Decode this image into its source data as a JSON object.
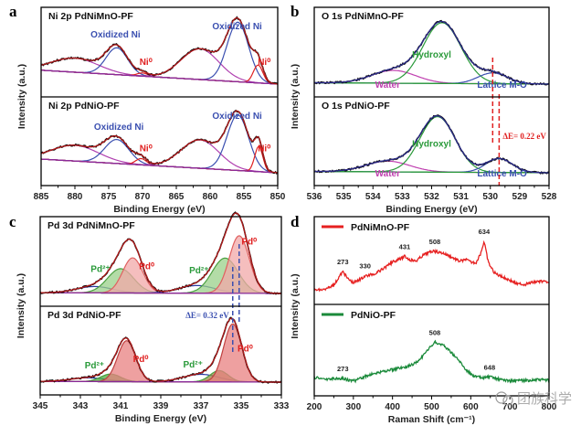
{
  "chart_data": [
    {
      "panel": "a",
      "type": "line",
      "xlabel": "Binding Energy (eV)",
      "ylabel": "Intensity (a.u.)",
      "xlim": [
        885,
        850
      ],
      "xticks": [
        885,
        880,
        875,
        870,
        865,
        860,
        855,
        850
      ],
      "subplots": [
        {
          "title": "Ni 2p PdNiMnO-PF",
          "annotations": [
            {
              "text": "Oxidized Ni",
              "x": 874,
              "color": "#3a4fb0"
            },
            {
              "text": "Ni⁰",
              "x": 869.5,
              "color": "#e02020"
            },
            {
              "text": "Oxidized Ni",
              "x": 856,
              "color": "#3a4fb0"
            },
            {
              "text": "Ni⁰",
              "x": 852,
              "color": "#e02020"
            }
          ],
          "peaks": [
            {
              "name": "Satellite",
              "center": 880,
              "height": 0.22,
              "width": 3.5,
              "color": "#b040b0"
            },
            {
              "name": "Oxidized Ni",
              "center": 873.8,
              "height": 0.42,
              "width": 1.6,
              "color": "#3a4fb0"
            },
            {
              "name": "Ni⁰",
              "center": 870.0,
              "height": 0.05,
              "width": 0.8,
              "color": "#e02020"
            },
            {
              "name": "Satellite",
              "center": 861.5,
              "height": 0.48,
              "width": 2.8,
              "color": "#b040b0"
            },
            {
              "name": "Oxidized Ni",
              "center": 855.9,
              "height": 0.93,
              "width": 1.6,
              "color": "#3a4fb0"
            },
            {
              "name": "Ni⁰",
              "center": 852.9,
              "height": 0.28,
              "width": 0.7,
              "color": "#e02020"
            }
          ],
          "baseline": [
            0.62,
            0.0
          ]
        },
        {
          "title": "Ni 2p PdNiO-PF",
          "annotations": [
            {
              "text": "Oxidized Ni",
              "x": 873.5,
              "color": "#3a4fb0"
            },
            {
              "text": "Ni⁰",
              "x": 869.5,
              "color": "#e02020"
            },
            {
              "text": "Oxidized Ni",
              "x": 856,
              "color": "#3a4fb0"
            },
            {
              "text": "Ni⁰",
              "x": 852,
              "color": "#e02020"
            }
          ],
          "peaks": [
            {
              "name": "Satellite",
              "center": 880,
              "height": 0.25,
              "width": 3.5,
              "color": "#b040b0"
            },
            {
              "name": "Oxidized Ni",
              "center": 873.8,
              "height": 0.38,
              "width": 1.8,
              "color": "#3a4fb0"
            },
            {
              "name": "Ni⁰",
              "center": 870.2,
              "height": 0.1,
              "width": 0.8,
              "color": "#e02020"
            },
            {
              "name": "Satellite",
              "center": 861.5,
              "height": 0.45,
              "width": 2.8,
              "color": "#b040b0"
            },
            {
              "name": "Oxidized Ni",
              "center": 855.9,
              "height": 0.88,
              "width": 1.6,
              "color": "#3a4fb0"
            },
            {
              "name": "Ni⁰",
              "center": 852.8,
              "height": 0.4,
              "width": 0.6,
              "color": "#e02020"
            }
          ],
          "baseline": [
            0.62,
            0.0
          ]
        }
      ]
    },
    {
      "panel": "b",
      "type": "line",
      "xlabel": "Binding Energy (eV)",
      "ylabel": "Intensity (a.u.)",
      "xlim": [
        536,
        528
      ],
      "xticks": [
        536,
        535,
        534,
        533,
        532,
        531,
        530,
        529,
        528
      ],
      "delta_annotation": "ΔE= 0.22 eV",
      "dashed_lines": [
        529.92,
        529.7
      ],
      "subplots": [
        {
          "title": "O 1s PdNiMnO-PF",
          "annotations": [
            {
              "text": "Hydroxyl",
              "x": 532.0,
              "color": "#2a9a3a"
            },
            {
              "text": "Water",
              "x": 533.5,
              "color": "#c040b0"
            },
            {
              "text": "Lattice M-O",
              "x": 529.6,
              "color": "#3a4fb0"
            }
          ],
          "peaks": [
            {
              "name": "Water",
              "center": 533.3,
              "height": 0.2,
              "width": 0.75,
              "color": "#c040b0"
            },
            {
              "name": "Hydroxyl",
              "center": 531.65,
              "height": 0.95,
              "width": 0.65,
              "color": "#2a9a3a"
            },
            {
              "name": "Lattice M-O",
              "center": 529.92,
              "height": 0.17,
              "width": 0.5,
              "color": "#3a4fb0"
            }
          ],
          "baseline": [
            0.06,
            0.0
          ]
        },
        {
          "title": "O 1s PdNiO-PF",
          "annotations": [
            {
              "text": "Hydroxyl",
              "x": 532.0,
              "color": "#2a9a3a"
            },
            {
              "text": "Water",
              "x": 533.5,
              "color": "#c040b0"
            },
            {
              "text": "Lattice M-O",
              "x": 529.6,
              "color": "#3a4fb0"
            }
          ],
          "peaks": [
            {
              "name": "Water",
              "center": 533.5,
              "height": 0.17,
              "width": 0.75,
              "color": "#c040b0"
            },
            {
              "name": "Hydroxyl",
              "center": 531.8,
              "height": 0.88,
              "width": 0.6,
              "color": "#2a9a3a"
            },
            {
              "name": "Lattice M-O",
              "center": 529.7,
              "height": 0.22,
              "width": 0.45,
              "color": "#3a4fb0"
            }
          ],
          "baseline": [
            0.06,
            0.0
          ]
        }
      ]
    },
    {
      "panel": "c",
      "type": "line",
      "xlabel": "Binding Energy (eV)",
      "ylabel": "Intensity (a.u.)",
      "xlim": [
        345,
        333
      ],
      "xticks": [
        345,
        343,
        341,
        339,
        337,
        335,
        333
      ],
      "delta_annotation": "ΔE= 0.32 eV",
      "dashed_lines": [
        335.1,
        335.42
      ],
      "subplots": [
        {
          "title": "Pd 3d PdNiMnO-PF",
          "annotations": [
            {
              "text": "Pd²⁺",
              "x": 342.0,
              "color": "#2a9a3a"
            },
            {
              "text": "Pd⁰",
              "x": 339.7,
              "color": "#e02020"
            },
            {
              "text": "Pd²⁺",
              "x": 337.1,
              "color": "#2a9a3a"
            },
            {
              "text": "Pd⁰",
              "x": 334.6,
              "color": "#e02020"
            }
          ],
          "peaks": [
            {
              "name": "Pd²⁺ sat",
              "center": 342.3,
              "height": 0.1,
              "width": 0.9,
              "color": "#2a3aa0"
            },
            {
              "name": "Pd²⁺",
              "center": 341.0,
              "height": 0.38,
              "width": 0.65,
              "color": "#4aa040",
              "fill": "#9ad08a"
            },
            {
              "name": "Pd⁰",
              "center": 340.4,
              "height": 0.55,
              "width": 0.5,
              "color": "#e06060",
              "fill": "#f2a8a8"
            },
            {
              "name": "Pd²⁺ sat",
              "center": 337.2,
              "height": 0.12,
              "width": 0.9,
              "color": "#2a3aa0"
            },
            {
              "name": "Pd²⁺",
              "center": 335.8,
              "height": 0.55,
              "width": 0.65,
              "color": "#4aa040",
              "fill": "#9ad08a"
            },
            {
              "name": "Pd⁰",
              "center": 335.1,
              "height": 0.9,
              "width": 0.5,
              "color": "#e06060",
              "fill": "#f2a8a8"
            }
          ],
          "baseline": [
            0.03,
            0.0
          ]
        },
        {
          "title": "Pd 3d PdNiO-PF",
          "annotations": [
            {
              "text": "Pd²⁺",
              "x": 342.3,
              "color": "#2a9a3a"
            },
            {
              "text": "Pd⁰",
              "x": 340.0,
              "color": "#e02020"
            },
            {
              "text": "Pd²⁺",
              "x": 337.4,
              "color": "#2a9a3a"
            },
            {
              "text": "Pd⁰",
              "x": 334.8,
              "color": "#e02020"
            }
          ],
          "peaks": [
            {
              "name": "Pd²⁺ sat",
              "center": 342.6,
              "height": 0.06,
              "width": 0.9,
              "color": "#2a3aa0"
            },
            {
              "name": "Pd²⁺",
              "center": 341.5,
              "height": 0.12,
              "width": 0.5,
              "color": "#4aa040",
              "fill": "#4cae3c"
            },
            {
              "name": "Pd⁰",
              "center": 340.7,
              "height": 0.65,
              "width": 0.45,
              "color": "#c04040",
              "fill": "#e88080"
            },
            {
              "name": "Pd²⁺ sat",
              "center": 337.0,
              "height": 0.12,
              "width": 0.9,
              "color": "#2a3aa0"
            },
            {
              "name": "Pd²⁺",
              "center": 336.1,
              "height": 0.18,
              "width": 0.45,
              "color": "#4aa040",
              "fill": "#9a8a40"
            },
            {
              "name": "Pd⁰",
              "center": 335.42,
              "height": 0.92,
              "width": 0.45,
              "color": "#c04040",
              "fill": "#e88080"
            }
          ],
          "baseline": [
            0.03,
            0.0
          ]
        }
      ]
    },
    {
      "panel": "d",
      "type": "line",
      "xlabel": "Raman Shift (cm⁻¹)",
      "ylabel": "Intensity (a.u.)",
      "xlim": [
        200,
        800
      ],
      "xticks": [
        200,
        300,
        400,
        500,
        600,
        700,
        800
      ],
      "subplots": [
        {
          "title": "PdNiMnO-PF",
          "color": "#e62020",
          "peak_labels": [
            273,
            330,
            431,
            508,
            634
          ],
          "x": [
            200,
            230,
            250,
            265,
            273,
            285,
            300,
            315,
            330,
            340,
            360,
            380,
            400,
            420,
            431,
            445,
            460,
            480,
            500,
            508,
            530,
            550,
            570,
            590,
            600,
            615,
            625,
            634,
            645,
            660,
            680,
            700,
            720,
            740,
            760,
            780,
            800
          ],
          "y": [
            0.03,
            0.04,
            0.12,
            0.3,
            0.38,
            0.25,
            0.17,
            0.22,
            0.3,
            0.31,
            0.36,
            0.45,
            0.56,
            0.62,
            0.67,
            0.6,
            0.58,
            0.7,
            0.76,
            0.76,
            0.73,
            0.66,
            0.58,
            0.6,
            0.56,
            0.55,
            0.72,
            0.95,
            0.55,
            0.36,
            0.28,
            0.22,
            0.14,
            0.14,
            0.18,
            0.2,
            0.16
          ]
        },
        {
          "title": "PdNiO-PF",
          "color": "#1a8a3a",
          "peak_labels": [
            273,
            508,
            648
          ],
          "x": [
            200,
            230,
            250,
            273,
            290,
            305,
            330,
            360,
            400,
            440,
            460,
            480,
            500,
            508,
            530,
            550,
            570,
            590,
            610,
            630,
            648,
            670,
            700,
            720,
            750,
            780,
            800
          ],
          "y": [
            0.1,
            0.07,
            0.08,
            0.08,
            0.05,
            0.04,
            0.12,
            0.18,
            0.24,
            0.3,
            0.36,
            0.5,
            0.67,
            0.73,
            0.68,
            0.55,
            0.4,
            0.22,
            0.12,
            0.09,
            0.11,
            0.07,
            0.04,
            0.04,
            0.05,
            0.06,
            0.05
          ]
        }
      ]
    }
  ],
  "panel_labels": [
    "a",
    "b",
    "c",
    "d"
  ],
  "watermark": "团族科学"
}
